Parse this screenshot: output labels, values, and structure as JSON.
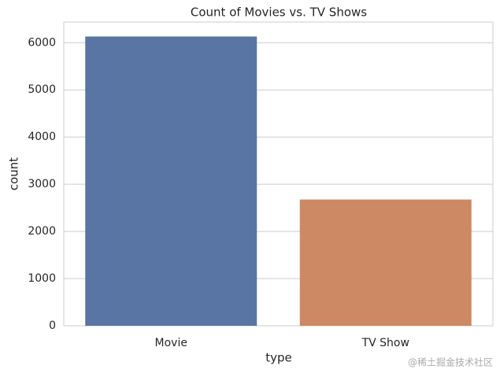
{
  "chart_data": {
    "type": "bar",
    "title": "Count of Movies vs. TV Shows",
    "x_label": "type",
    "y_label": "count",
    "categories": [
      "Movie",
      "TV Show"
    ],
    "values": [
      6131,
      2676
    ],
    "colors": [
      "#5975a4",
      "#cc8963"
    ],
    "ylim": [
      0,
      6438
    ],
    "yticks": [
      0,
      1000,
      2000,
      3000,
      4000,
      5000,
      6000
    ],
    "grid": true
  },
  "watermark": "@稀土掘金技术社区"
}
